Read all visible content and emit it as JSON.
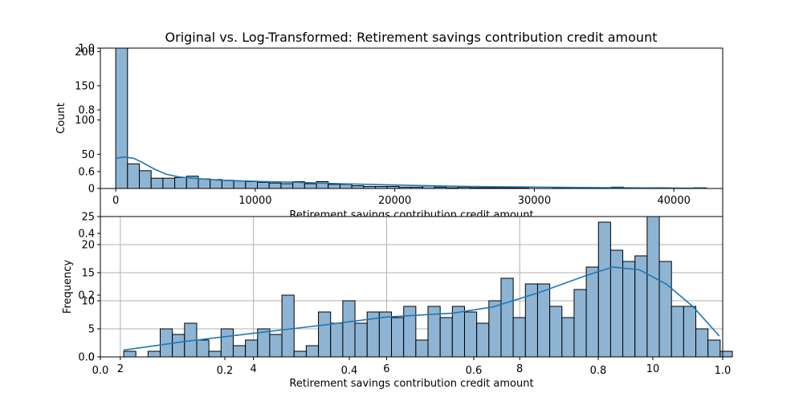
{
  "title": "Original vs. Log-Transformed: Retirement savings contribution credit amount",
  "colors": {
    "bar_fill": "#8eb4d4",
    "bar_edge": "#000000",
    "kde": "#1f77b4",
    "grid": "#b0b0b0"
  },
  "chart_data": [
    {
      "type": "bar",
      "name": "original",
      "xlabel": "Retirement savings contribution credit amount",
      "ylabel": "Count",
      "xlim": [
        -1100,
        43500
      ],
      "ylim": [
        0,
        205
      ],
      "xticks": [
        0,
        10000,
        20000,
        30000,
        40000
      ],
      "xtick_labels": [
        "0",
        "10000",
        "20000",
        "30000",
        "40000"
      ],
      "yticks": [
        0,
        50,
        100,
        150,
        200
      ],
      "ytick_labels": [
        "0",
        "50",
        "100",
        "150",
        "200"
      ],
      "bin_start": 0,
      "bin_width": 846,
      "counts": [
        213,
        36,
        26,
        15,
        15,
        16,
        18,
        14,
        13,
        12,
        11,
        10,
        9,
        8,
        7,
        10,
        7,
        10,
        6,
        6,
        4,
        3,
        3,
        3,
        2,
        2,
        4,
        2,
        1,
        2,
        1,
        1,
        1,
        1,
        1,
        0,
        0,
        1,
        1,
        0,
        0,
        0,
        2,
        0,
        0,
        1,
        1,
        0,
        0,
        1
      ],
      "kde_x": [
        0,
        600,
        1300,
        2000,
        2800,
        3600,
        4500,
        5500,
        6500,
        7500,
        9000,
        11000,
        13000,
        16000,
        20000,
        25000,
        30000,
        35000,
        40000,
        42400
      ],
      "kde_y": [
        44,
        46,
        44,
        37,
        28,
        21,
        17,
        15,
        13.5,
        12,
        11,
        10,
        9,
        7,
        5,
        3,
        2,
        1.2,
        0.6,
        0.4
      ]
    },
    {
      "type": "bar",
      "name": "log",
      "xlabel": "Retirement savings contribution credit amount",
      "ylabel": "Frequency",
      "xlim": [
        1.7,
        11.05
      ],
      "ylim": [
        0,
        25
      ],
      "xticks": [
        2,
        4,
        6,
        8,
        10
      ],
      "xtick_labels": [
        "2",
        "4",
        "6",
        "8",
        "10"
      ],
      "yticks": [
        0,
        5,
        10,
        15,
        20,
        25
      ],
      "ytick_labels": [
        "0",
        "5",
        "10",
        "15",
        "20",
        "25"
      ],
      "grid": true,
      "bin_start": 2.05,
      "bin_width": 0.1829,
      "counts": [
        1,
        0,
        1,
        5,
        4,
        6,
        3,
        1,
        5,
        2,
        3,
        5,
        4,
        11,
        1,
        2,
        8,
        6,
        10,
        6,
        8,
        8,
        7,
        9,
        3,
        9,
        7,
        9,
        8,
        6,
        10,
        14,
        7,
        13,
        13,
        9,
        7,
        12,
        16,
        24,
        19,
        17,
        18,
        25,
        17,
        9,
        9,
        5,
        3,
        1
      ],
      "kde_x": [
        2.05,
        3,
        4,
        5,
        6,
        7,
        7.6,
        8.3,
        9,
        9.4,
        9.8,
        10.2,
        10.6,
        11.0
      ],
      "kde_y": [
        1.2,
        2.8,
        4.2,
        5.6,
        7.1,
        7.8,
        8.9,
        11.5,
        14.5,
        16,
        15.5,
        13,
        9,
        3.7
      ]
    }
  ],
  "overlay_axis": {
    "xticks": [
      "0.0",
      "0.2",
      "0.4",
      "0.6",
      "0.8",
      "1.0"
    ],
    "yticks": [
      "0.0",
      "0.2",
      "0.4",
      "0.6",
      "0.8",
      "1.0"
    ]
  }
}
